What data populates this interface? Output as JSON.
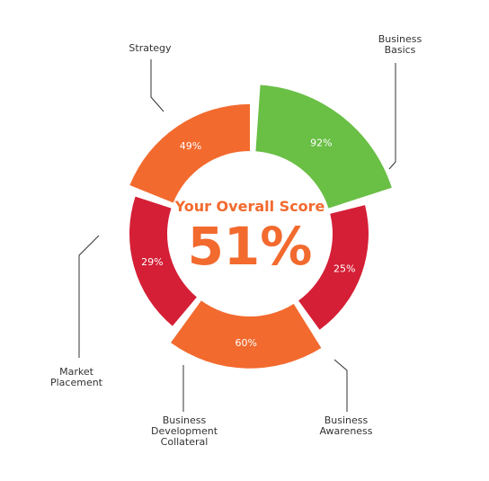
{
  "center": {
    "title": "Your Overall Score",
    "value": "51%"
  },
  "chart_data": {
    "type": "pie",
    "title": "",
    "categories": [
      "Business Basics",
      "Business Awareness",
      "Business Development Collateral",
      "Market Placement",
      "Strategy"
    ],
    "values": [
      92,
      25,
      60,
      29,
      49
    ],
    "value_labels": [
      "92%",
      "25%",
      "60%",
      "29%",
      "49%"
    ],
    "colors": [
      "#6abf45",
      "#d51f36",
      "#f26a2e",
      "#d51f36",
      "#f26a2e"
    ],
    "legend": "none",
    "grid": false
  },
  "labels": [
    "Business\nBasics",
    "Business\nAwareness",
    "Business\nDevelopment\nCollateral",
    "Market\nPlacement",
    "Strategy"
  ]
}
